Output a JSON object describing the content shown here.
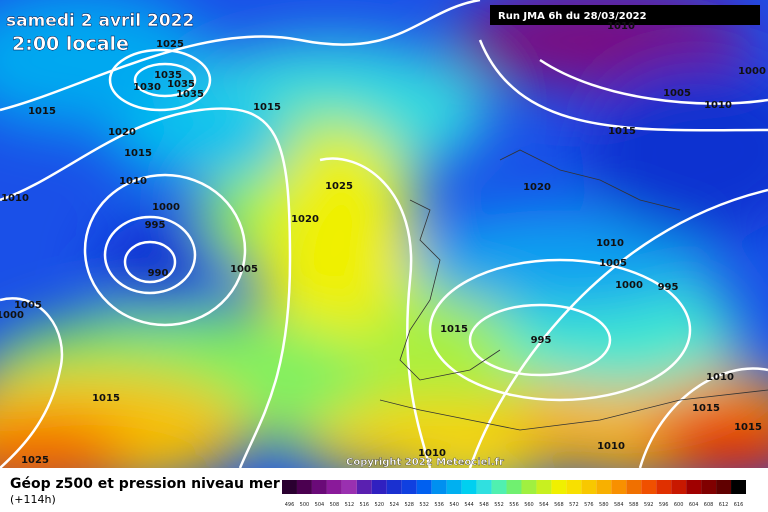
{
  "header": {
    "title": "samedi 2 avril 2022",
    "time": "2:00 locale",
    "run": "Run JMA 6h du 28/03/2022"
  },
  "footer": {
    "title": "Géop z500 et pression niveau mer",
    "lead": "(+114h)",
    "copyright": "Copyright 2022 Meteociel.fr"
  },
  "colorbar": {
    "labels": [
      496,
      500,
      504,
      508,
      512,
      516,
      520,
      524,
      528,
      532,
      536,
      540,
      544,
      548,
      552,
      556,
      560,
      564,
      568,
      572,
      576,
      580,
      584,
      588,
      592,
      596,
      600,
      604,
      608,
      612,
      616
    ]
  },
  "isobars": {
    "labels": [
      "1025",
      "1035",
      "1030",
      "1035",
      "1035",
      "1015",
      "1015",
      "1020",
      "1015",
      "1010",
      "1010",
      "1025",
      "1000",
      "995",
      "1020",
      "990",
      "1005",
      "1005",
      "1000",
      "1015",
      "995",
      "1015",
      "1025",
      "1010",
      "1010",
      "1020",
      "1010",
      "1005",
      "1000",
      "995",
      "1015",
      "1005",
      "1010",
      "1000",
      "1010",
      "1015",
      "1015",
      "1010"
    ]
  }
}
